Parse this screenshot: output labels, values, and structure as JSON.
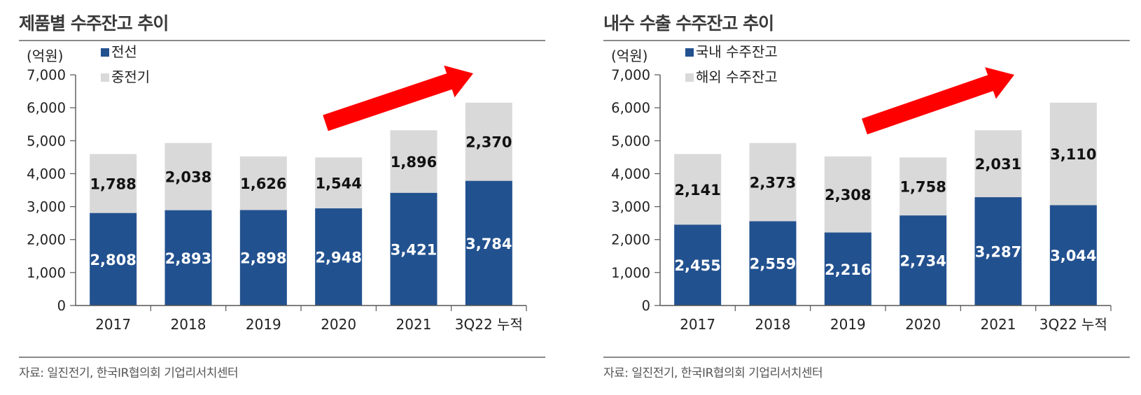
{
  "chart_data": [
    {
      "type": "bar",
      "stacked": true,
      "title": "제품별 수주잔고 추이",
      "unit_label": "(억원)",
      "categories": [
        "2017",
        "2018",
        "2019",
        "2020",
        "2021",
        "3Q22 누적"
      ],
      "y_ticks": [
        "0",
        "1,000",
        "2,000",
        "3,000",
        "4,000",
        "5,000",
        "6,000",
        "7,000"
      ],
      "ylim": [
        0,
        7000
      ],
      "series": [
        {
          "name": "전선",
          "color": "#22518f",
          "values": [
            2808,
            2893,
            2898,
            2948,
            3421,
            3784
          ],
          "labels": [
            "2,808",
            "2,893",
            "2,898",
            "2,948",
            "3,421",
            "3,784"
          ]
        },
        {
          "name": "중전기",
          "color": "#d9d9d9",
          "values": [
            1788,
            2038,
            1626,
            1544,
            1896,
            2370
          ],
          "labels": [
            "1,788",
            "2,038",
            "1,626",
            "1,544",
            "1,896",
            "2,370"
          ]
        }
      ],
      "legend_position": "top-left",
      "grid": false,
      "annotation": "red-up-trend-arrow",
      "source": "자료: 일진전기, 한국IR협의회 기업리서치센터"
    },
    {
      "type": "bar",
      "stacked": true,
      "title": "내수 수출 수주잔고 추이",
      "unit_label": "(억원)",
      "categories": [
        "2017",
        "2018",
        "2019",
        "2020",
        "2021",
        "3Q22 누적"
      ],
      "y_ticks": [
        "0",
        "1,000",
        "2,000",
        "3,000",
        "4,000",
        "5,000",
        "6,000",
        "7,000"
      ],
      "ylim": [
        0,
        7000
      ],
      "series": [
        {
          "name": "국내 수주잔고",
          "color": "#22518f",
          "values": [
            2455,
            2559,
            2216,
            2734,
            3287,
            3044
          ],
          "labels": [
            "2,455",
            "2,559",
            "2,216",
            "2,734",
            "3,287",
            "3,044"
          ]
        },
        {
          "name": "해외 수주잔고",
          "color": "#d9d9d9",
          "values": [
            2141,
            2373,
            2308,
            1758,
            2031,
            3110
          ],
          "labels": [
            "2,141",
            "2,373",
            "2,308",
            "1,758",
            "2,031",
            "3,110"
          ]
        }
      ],
      "legend_position": "top-left",
      "grid": false,
      "annotation": "red-up-trend-arrow",
      "source": "자료: 일진전기, 한국IR협의회 기업리서치센터"
    }
  ]
}
